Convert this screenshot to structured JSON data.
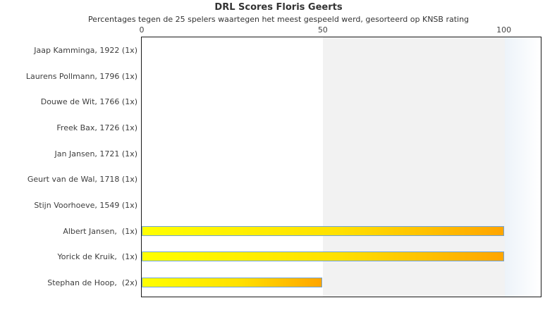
{
  "chart_data": {
    "type": "bar",
    "orientation": "horizontal",
    "title": "DRL Scores Floris Geerts",
    "subtitle": "Percentages tegen de 25 spelers waartegen het meest gespeeld werd, gesorteerd op KNSB rating",
    "categories": [
      "Jaap Kamminga, 1922 (1x)",
      "Laurens Pollmann, 1796 (1x)",
      "Douwe de Wit, 1766 (1x)",
      "Freek Bax, 1726 (1x)",
      "Jan Jansen, 1721 (1x)",
      "Geurt van de Wal, 1718 (1x)",
      "Stijn Voorhoeve, 1549 (1x)",
      "Albert Jansen,  (1x)",
      "Yorick de Kruik,  (1x)",
      "Stephan de Hoop,  (2x)"
    ],
    "values": [
      0,
      0,
      0,
      0,
      0,
      0,
      0,
      100,
      100,
      50
    ],
    "xlabel": "",
    "ylabel": "",
    "xlim": [
      0,
      110
    ],
    "xticks": [
      0,
      50,
      100
    ],
    "grid": false,
    "legend": "none",
    "highlight_band": {
      "from": 50,
      "to": 100,
      "color": "#f2f2f2"
    },
    "overflow_band": {
      "from": 100,
      "to": 110,
      "color_start": "#edf3f9",
      "color_end": "#ffffff"
    },
    "bar_style": {
      "gradient_start": "#ffff00",
      "gradient_mid": "#ffe000",
      "gradient_end": "#ffa500",
      "border_color": "#6fa3d6"
    },
    "colors": {
      "plot_border": "#1a1a1a",
      "title": "#333333",
      "labels": "#3d3d3d",
      "ticks": "#444444",
      "background": "#ffffff"
    }
  }
}
